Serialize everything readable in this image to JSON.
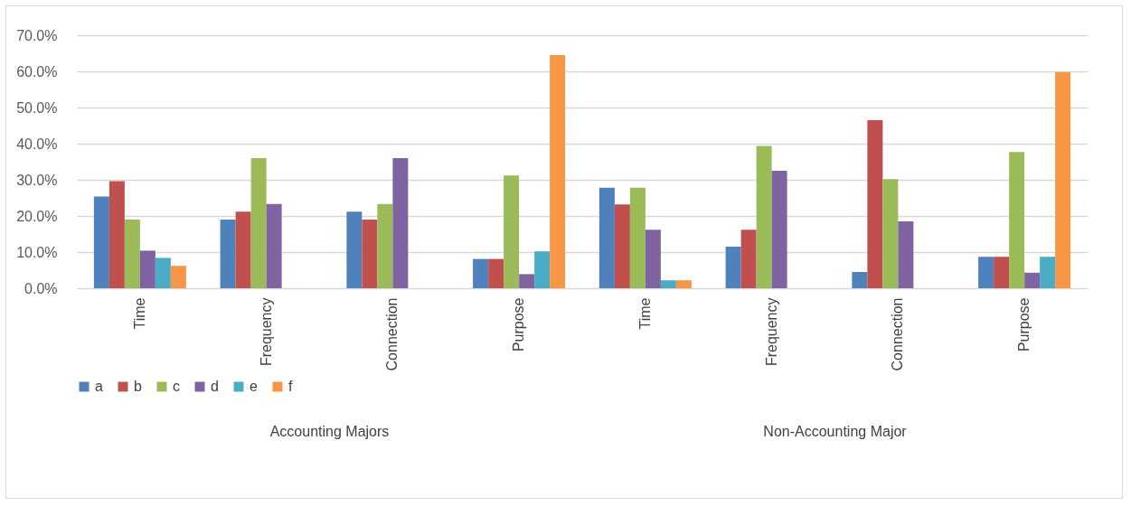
{
  "chart_data": {
    "type": "bar",
    "categories": [
      "Time",
      "Frequency",
      "Connection",
      "Purpose",
      "Time",
      "Frequency",
      "Connection",
      "Purpose"
    ],
    "series": [
      {
        "name": "a",
        "color": "#4f81bd",
        "values": [
          25.4,
          19.0,
          21.2,
          8.1,
          27.8,
          11.5,
          4.5,
          8.7
        ]
      },
      {
        "name": "b",
        "color": "#c0504d",
        "values": [
          29.6,
          21.2,
          19.0,
          8.1,
          23.2,
          16.2,
          46.5,
          8.7
        ]
      },
      {
        "name": "c",
        "color": "#9bbb59",
        "values": [
          19.0,
          36.0,
          23.3,
          31.2,
          27.8,
          39.4,
          30.2,
          37.7
        ]
      },
      {
        "name": "d",
        "color": "#8064a2",
        "values": [
          10.4,
          23.3,
          36.0,
          3.9,
          16.2,
          32.5,
          18.5,
          4.3
        ]
      },
      {
        "name": "e",
        "color": "#4bacc6",
        "values": [
          8.4,
          null,
          null,
          10.2,
          2.2,
          null,
          null,
          8.7
        ]
      },
      {
        "name": "f",
        "color": "#f79646",
        "values": [
          6.2,
          null,
          null,
          64.5,
          2.2,
          null,
          null,
          59.8
        ]
      }
    ],
    "ylim": [
      0,
      70
    ],
    "yticks": [
      {
        "value": 0,
        "label": "0.0%"
      },
      {
        "value": 10,
        "label": "10.0%"
      },
      {
        "value": 20,
        "label": "20.0%"
      },
      {
        "value": 30,
        "label": "30.0%"
      },
      {
        "value": 40,
        "label": "40.0%"
      },
      {
        "value": 50,
        "label": "50.0%"
      },
      {
        "value": 60,
        "label": "60.0%"
      },
      {
        "value": 70,
        "label": "70.0%"
      }
    ],
    "annotations": [
      "Accounting Majors",
      "Non-Accounting Major"
    ],
    "grid": "y",
    "legend": "bottom"
  }
}
